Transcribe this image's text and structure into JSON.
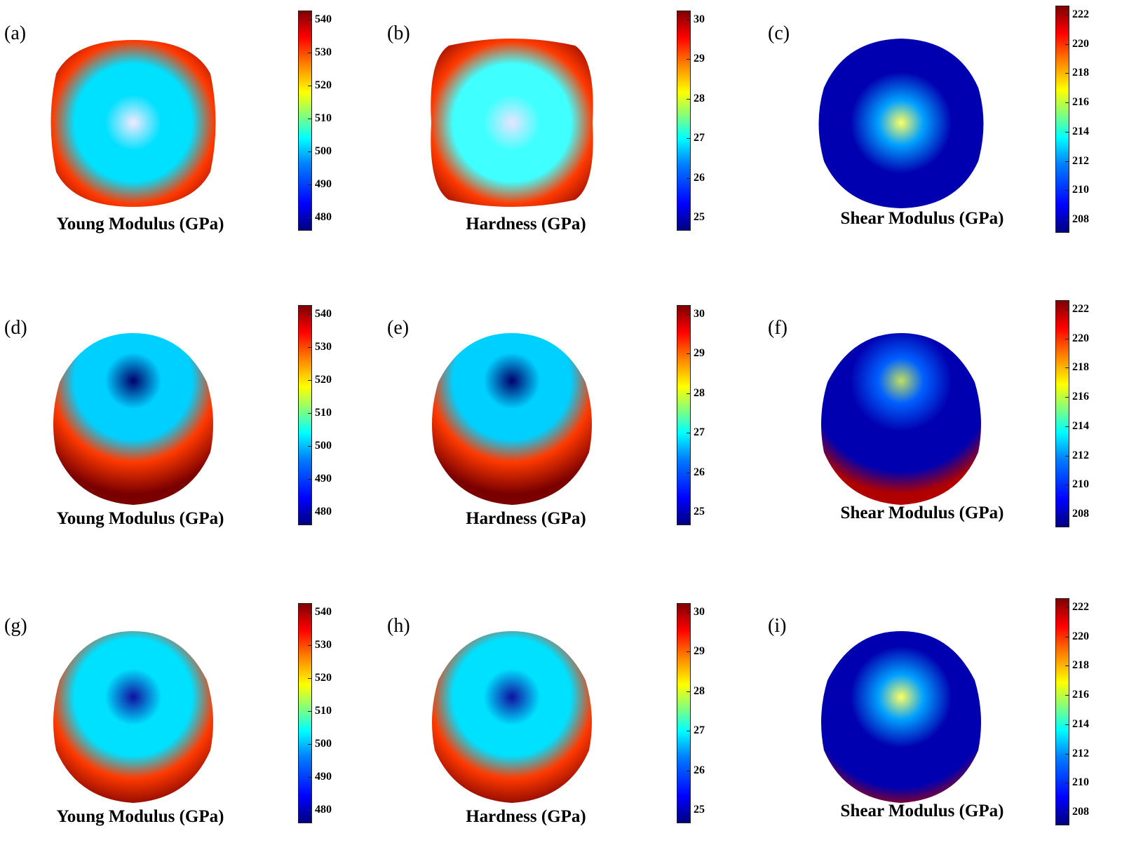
{
  "panels": [
    {
      "letter": "(a)",
      "caption": "Young Modulus (GPa)",
      "ticks": [
        "540",
        "530",
        "520",
        "510",
        "500",
        "490",
        "480"
      ],
      "variant": "young-top",
      "colors": {
        "center": "#f2eaff",
        "mid": "#00e0ff",
        "outer": "#ff3a00",
        "corner": "#7a0000"
      }
    },
    {
      "letter": "(b)",
      "caption": "Hardness (GPa)",
      "ticks": [
        "30",
        "29",
        "28",
        "27",
        "26",
        "25"
      ],
      "variant": "hard-top",
      "colors": {
        "center": "#e8e4ff",
        "mid": "#40ffff",
        "outer": "#ff3a00",
        "corner": "#7a0000"
      }
    },
    {
      "letter": "(c)",
      "caption": "Shear Modulus (GPa)",
      "ticks": [
        "222",
        "220",
        "218",
        "216",
        "214",
        "212",
        "210",
        "208"
      ],
      "variant": "shear-top",
      "colors": {
        "center": "#ffff60",
        "mid": "#00a0ff",
        "outer": "#0000b0",
        "corner": "#00006a"
      }
    },
    {
      "letter": "(d)",
      "caption": "Young Modulus (GPa)",
      "ticks": [
        "540",
        "530",
        "520",
        "510",
        "500",
        "490",
        "480"
      ],
      "variant": "young-side",
      "colors": {
        "center": "#00006a",
        "mid": "#00d0ff",
        "outer": "#ff3a00",
        "corner": "#7a0000"
      }
    },
    {
      "letter": "(e)",
      "caption": "Hardness (GPa)",
      "ticks": [
        "30",
        "29",
        "28",
        "27",
        "26",
        "25"
      ],
      "variant": "hard-side",
      "colors": {
        "center": "#00006a",
        "mid": "#00d0ff",
        "outer": "#ff3a00",
        "corner": "#7a0000"
      }
    },
    {
      "letter": "(f)",
      "caption": "Shear Modulus (GPa)",
      "ticks": [
        "222",
        "220",
        "218",
        "216",
        "214",
        "212",
        "210",
        "208"
      ],
      "variant": "shear-side",
      "colors": {
        "center": "#c0e060",
        "mid": "#0060ff",
        "outer": "#0000b0",
        "corner": "#b00000"
      }
    },
    {
      "letter": "(g)",
      "caption": "Young Modulus (GPa)",
      "ticks": [
        "540",
        "530",
        "520",
        "510",
        "500",
        "490",
        "480"
      ],
      "variant": "young-low",
      "colors": {
        "center": "#1010a0",
        "mid": "#00e0ff",
        "outer": "#ff3a00",
        "corner": "#7a0000"
      }
    },
    {
      "letter": "(h)",
      "caption": "Hardness (GPa)",
      "ticks": [
        "30",
        "29",
        "28",
        "27",
        "26",
        "25"
      ],
      "variant": "hard-low",
      "colors": {
        "center": "#1010a0",
        "mid": "#00e0ff",
        "outer": "#ff3a00",
        "corner": "#7a0000"
      }
    },
    {
      "letter": "(i)",
      "caption": "Shear Modulus (GPa)",
      "ticks": [
        "222",
        "220",
        "218",
        "216",
        "214",
        "212",
        "210",
        "208"
      ],
      "variant": "shear-low",
      "colors": {
        "center": "#ffff60",
        "mid": "#00a0ff",
        "outer": "#0000b0",
        "corner": "#b00000"
      }
    }
  ]
}
